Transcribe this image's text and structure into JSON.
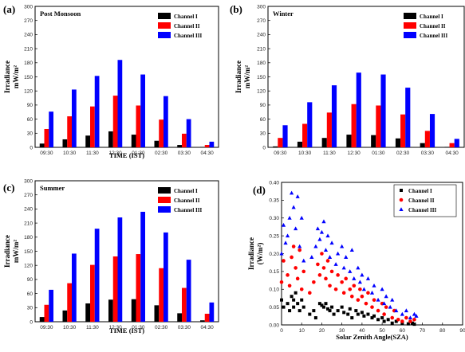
{
  "chart_data": [
    {
      "panel_label": "(a)",
      "type": "bar",
      "title": "Post Monsoon",
      "xlabel": "TIME (IST)",
      "ylabel": [
        "Irradiance",
        "mW/m²"
      ],
      "ylim": [
        0,
        300
      ],
      "yticks": [
        0,
        30,
        60,
        90,
        120,
        150,
        180,
        210,
        240,
        270,
        300
      ],
      "categories": [
        "09:30",
        "10:30",
        "11:30",
        "12:30",
        "01:30",
        "02:30",
        "03:30",
        "04:30"
      ],
      "legend_position": "top-right",
      "series": [
        {
          "name": "Channel I",
          "color": "#000000",
          "values": [
            8,
            17,
            25,
            34,
            27,
            14,
            5,
            1
          ]
        },
        {
          "name": "Channel II",
          "color": "#ff0000",
          "values": [
            39,
            66,
            87,
            110,
            89,
            59,
            29,
            5
          ]
        },
        {
          "name": "Channel III",
          "color": "#0000ff",
          "values": [
            76,
            123,
            152,
            186,
            155,
            109,
            60,
            12
          ]
        }
      ]
    },
    {
      "panel_label": "(b)",
      "type": "bar",
      "title": "Winter",
      "xlabel": "",
      "ylabel": [
        "Irradiance",
        "mW/m²"
      ],
      "ylim": [
        0,
        300
      ],
      "yticks": [
        0,
        30,
        60,
        90,
        120,
        150,
        180,
        210,
        240,
        270,
        300
      ],
      "categories": [
        "09:30",
        "10:30",
        "11:30",
        "12:30",
        "01:30",
        "02:30",
        "03:30",
        "04:30"
      ],
      "legend_position": "top-right",
      "series": [
        {
          "name": "Channel I",
          "color": "#000000",
          "values": [
            2,
            12,
            20,
            27,
            26,
            19,
            9,
            1
          ]
        },
        {
          "name": "Channel II",
          "color": "#ff0000",
          "values": [
            20,
            50,
            74,
            92,
            89,
            70,
            35,
            9
          ]
        },
        {
          "name": "Channel III",
          "color": "#0000ff",
          "values": [
            47,
            96,
            132,
            159,
            155,
            127,
            71,
            18
          ]
        }
      ]
    },
    {
      "panel_label": "(c)",
      "type": "bar",
      "title": "Summer",
      "xlabel": "TIME (IST)",
      "ylabel": [
        "Irradiance",
        "mW/m²"
      ],
      "ylim": [
        0,
        300
      ],
      "yticks": [
        0,
        30,
        60,
        90,
        120,
        150,
        180,
        210,
        240,
        270,
        300
      ],
      "categories": [
        "09:30",
        "10:30",
        "11:30",
        "12:30",
        "01:30",
        "02:30",
        "03:30",
        "04:30"
      ],
      "legend_position": "top-right",
      "series": [
        {
          "name": "Channel I",
          "color": "#000000",
          "values": [
            10,
            24,
            39,
            47,
            48,
            35,
            18,
            3
          ]
        },
        {
          "name": "Channel II",
          "color": "#ff0000",
          "values": [
            36,
            82,
            121,
            139,
            144,
            114,
            72,
            17
          ]
        },
        {
          "name": "Channel III",
          "color": "#0000ff",
          "values": [
            68,
            145,
            198,
            222,
            234,
            190,
            132,
            41
          ]
        }
      ]
    },
    {
      "panel_label": "(d)",
      "type": "scatter",
      "title": "",
      "xlabel": "Solar Zenith Angle(SZA)",
      "ylabel": [
        "Irradiance",
        "(W/m²)"
      ],
      "xlim": [
        0,
        90
      ],
      "ylim": [
        0,
        0.4
      ],
      "xticks": [
        0,
        10,
        20,
        30,
        40,
        50,
        60,
        70,
        80,
        90
      ],
      "yticks": [
        "0.00",
        "0.05",
        "0.10",
        "0.15",
        "0.20",
        "0.25",
        "0.30",
        "0.35",
        "0.40"
      ],
      "legend_position": "top-right",
      "series": [
        {
          "name": "Channel I",
          "color": "#000000",
          "marker": "square",
          "points": [
            [
              0,
              0.07
            ],
            [
              1,
              0.05
            ],
            [
              3,
              0.06
            ],
            [
              4,
              0.04
            ],
            [
              5,
              0.08
            ],
            [
              6,
              0.07
            ],
            [
              6,
              0.05
            ],
            [
              7,
              0.09
            ],
            [
              8,
              0.06
            ],
            [
              9,
              0.04
            ],
            [
              10,
              0.07
            ],
            [
              11,
              0.05
            ],
            [
              14,
              0.03
            ],
            [
              16,
              0.04
            ],
            [
              17,
              0.02
            ],
            [
              19,
              0.06
            ],
            [
              20,
              0.055
            ],
            [
              21,
              0.05
            ],
            [
              22,
              0.06
            ],
            [
              23,
              0.045
            ],
            [
              24,
              0.04
            ],
            [
              25,
              0.05
            ],
            [
              26,
              0.03
            ],
            [
              28,
              0.04
            ],
            [
              30,
              0.05
            ],
            [
              31,
              0.035
            ],
            [
              33,
              0.03
            ],
            [
              34,
              0.045
            ],
            [
              35,
              0.02
            ],
            [
              37,
              0.04
            ],
            [
              38,
              0.03
            ],
            [
              40,
              0.035
            ],
            [
              41,
              0.025
            ],
            [
              43,
              0.03
            ],
            [
              45,
              0.02
            ],
            [
              46,
              0.025
            ],
            [
              48,
              0.015
            ],
            [
              50,
              0.02
            ],
            [
              51,
              0.01
            ],
            [
              53,
              0.015
            ],
            [
              55,
              0.005
            ],
            [
              57,
              0.01
            ],
            [
              60,
              0.005
            ],
            [
              63,
              0.003
            ],
            [
              65,
              0.005
            ],
            [
              66,
              0.002
            ]
          ]
        },
        {
          "name": "Channel II",
          "color": "#ff0000",
          "marker": "circle",
          "points": [
            [
              0,
              0.12
            ],
            [
              1,
              0.18
            ],
            [
              3,
              0.14
            ],
            [
              4,
              0.11
            ],
            [
              5,
              0.19
            ],
            [
              6,
              0.22
            ],
            [
              7,
              0.16
            ],
            [
              8,
              0.13
            ],
            [
              9,
              0.21
            ],
            [
              10,
              0.1
            ],
            [
              11,
              0.15
            ],
            [
              14,
              0.09
            ],
            [
              16,
              0.12
            ],
            [
              18,
              0.17
            ],
            [
              19,
              0.14
            ],
            [
              20,
              0.2
            ],
            [
              21,
              0.16
            ],
            [
              22,
              0.13
            ],
            [
              23,
              0.18
            ],
            [
              24,
              0.11
            ],
            [
              25,
              0.15
            ],
            [
              27,
              0.1
            ],
            [
              28,
              0.14
            ],
            [
              30,
              0.12
            ],
            [
              31,
              0.09
            ],
            [
              32,
              0.13
            ],
            [
              34,
              0.1
            ],
            [
              35,
              0.08
            ],
            [
              36,
              0.11
            ],
            [
              38,
              0.07
            ],
            [
              39,
              0.1
            ],
            [
              40,
              0.08
            ],
            [
              42,
              0.06
            ],
            [
              43,
              0.09
            ],
            [
              45,
              0.05
            ],
            [
              46,
              0.07
            ],
            [
              48,
              0.04
            ],
            [
              50,
              0.06
            ],
            [
              51,
              0.03
            ],
            [
              52,
              0.05
            ],
            [
              55,
              0.02
            ],
            [
              56,
              0.04
            ],
            [
              58,
              0.015
            ],
            [
              60,
              0.01
            ],
            [
              62,
              0.02
            ],
            [
              64,
              0.01
            ],
            [
              66,
              0.015
            ]
          ]
        },
        {
          "name": "Channel III",
          "color": "#0000ff",
          "marker": "triangle",
          "points": [
            [
              0,
              0.2
            ],
            [
              1,
              0.28
            ],
            [
              2,
              0.23
            ],
            [
              3,
              0.25
            ],
            [
              4,
              0.3
            ],
            [
              5,
              0.37
            ],
            [
              6,
              0.33
            ],
            [
              7,
              0.27
            ],
            [
              8,
              0.36
            ],
            [
              9,
              0.22
            ],
            [
              10,
              0.3
            ],
            [
              11,
              0.18
            ],
            [
              15,
              0.19
            ],
            [
              17,
              0.22
            ],
            [
              18,
              0.27
            ],
            [
              19,
              0.24
            ],
            [
              20,
              0.26
            ],
            [
              21,
              0.29
            ],
            [
              22,
              0.21
            ],
            [
              23,
              0.25
            ],
            [
              24,
              0.19
            ],
            [
              25,
              0.23
            ],
            [
              27,
              0.17
            ],
            [
              28,
              0.2
            ],
            [
              30,
              0.22
            ],
            [
              31,
              0.16
            ],
            [
              32,
              0.19
            ],
            [
              34,
              0.15
            ],
            [
              35,
              0.21
            ],
            [
              36,
              0.13
            ],
            [
              38,
              0.16
            ],
            [
              39,
              0.12
            ],
            [
              40,
              0.14
            ],
            [
              41,
              0.1
            ],
            [
              43,
              0.13
            ],
            [
              45,
              0.09
            ],
            [
              46,
              0.11
            ],
            [
              48,
              0.07
            ],
            [
              50,
              0.1
            ],
            [
              51,
              0.06
            ],
            [
              52,
              0.08
            ],
            [
              54,
              0.05
            ],
            [
              55,
              0.07
            ],
            [
              57,
              0.04
            ],
            [
              60,
              0.03
            ],
            [
              62,
              0.04
            ],
            [
              64,
              0.02
            ],
            [
              66,
              0.03
            ],
            [
              67,
              0.025
            ]
          ]
        }
      ]
    }
  ]
}
